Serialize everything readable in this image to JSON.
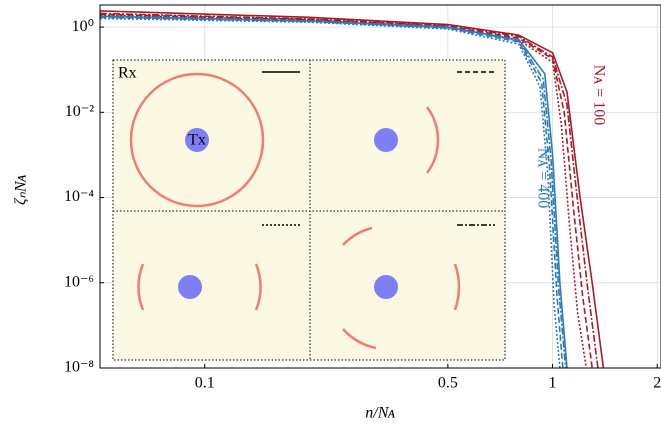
{
  "chart_data": {
    "type": "line",
    "xlabel": "n/Nᴀ",
    "ylabel": "ζₙNᴀ",
    "xlim": [
      0.05,
      2.05
    ],
    "ylim": [
      1e-08,
      3.3
    ],
    "xscale": "log",
    "yscale": "log",
    "grid": true,
    "xticks": [
      0.1,
      0.5,
      1,
      2
    ],
    "yticks": [
      {
        "value": 1,
        "label": "10⁰"
      },
      {
        "value": 0.01,
        "label": "10⁻²"
      },
      {
        "value": 0.0001,
        "label": "10⁻⁴"
      },
      {
        "value": 1e-06,
        "label": "10⁻⁶"
      },
      {
        "value": 1e-08,
        "label": "10⁻⁸"
      }
    ],
    "series": [
      {
        "color": "#a51c2a",
        "dash": "solid",
        "x": [
          0.05,
          0.2,
          0.5,
          0.8,
          1.0,
          1.1,
          1.2,
          1.3,
          1.4
        ],
        "values": [
          2.4,
          1.7,
          1.15,
          0.65,
          0.25,
          0.03,
          0.0001,
          1e-06,
          1e-08
        ]
      },
      {
        "color": "#a51c2a",
        "dash": "dashed",
        "x": [
          0.05,
          0.2,
          0.5,
          0.8,
          1.0,
          1.08,
          1.15,
          1.22,
          1.3
        ],
        "values": [
          2.0,
          1.5,
          1.05,
          0.55,
          0.18,
          0.01,
          5e-05,
          5e-07,
          1e-08
        ]
      },
      {
        "color": "#a51c2a",
        "dash": "dotted",
        "x": [
          0.05,
          0.2,
          0.5,
          0.8,
          1.0,
          1.06,
          1.12,
          1.18,
          1.25
        ],
        "values": [
          1.9,
          1.45,
          1.0,
          0.5,
          0.15,
          0.005,
          2e-05,
          2e-07,
          1e-08
        ]
      },
      {
        "color": "#a51c2a",
        "dash": "dashdot",
        "x": [
          0.05,
          0.2,
          0.5,
          0.8,
          1.0,
          1.1,
          1.18,
          1.26,
          1.35
        ],
        "values": [
          2.1,
          1.55,
          1.1,
          0.6,
          0.2,
          0.015,
          8e-05,
          8e-07,
          1e-08
        ]
      },
      {
        "color": "#2b7bba",
        "dash": "solid",
        "x": [
          0.05,
          0.2,
          0.5,
          0.8,
          0.95,
          1.0,
          1.05,
          1.1
        ],
        "values": [
          1.8,
          1.4,
          1.0,
          0.5,
          0.08,
          0.001,
          1e-06,
          1e-08
        ]
      },
      {
        "color": "#2b7bba",
        "dash": "dashed",
        "x": [
          0.05,
          0.2,
          0.5,
          0.8,
          0.93,
          0.98,
          1.03,
          1.07
        ],
        "values": [
          1.7,
          1.35,
          0.95,
          0.45,
          0.05,
          0.0005,
          5e-07,
          1e-08
        ]
      },
      {
        "color": "#2b7bba",
        "dash": "dotted",
        "x": [
          0.05,
          0.2,
          0.5,
          0.8,
          0.92,
          0.97,
          1.01,
          1.05
        ],
        "values": [
          1.6,
          1.3,
          0.9,
          0.4,
          0.04,
          0.0003,
          3e-07,
          1e-08
        ]
      },
      {
        "color": "#2b7bba",
        "dash": "dashdot",
        "x": [
          0.05,
          0.2,
          0.5,
          0.8,
          0.94,
          0.99,
          1.04,
          1.09
        ],
        "values": [
          1.75,
          1.38,
          0.98,
          0.48,
          0.06,
          0.0008,
          8e-07,
          1e-08
        ]
      }
    ],
    "annotations": [
      {
        "text": "Nᴀ = 100",
        "color": "#a51c2a"
      },
      {
        "text": "Nᴀ = 400",
        "color": "#2b7bba"
      },
      {
        "text": "Rx"
      },
      {
        "text": "Tx"
      }
    ]
  }
}
